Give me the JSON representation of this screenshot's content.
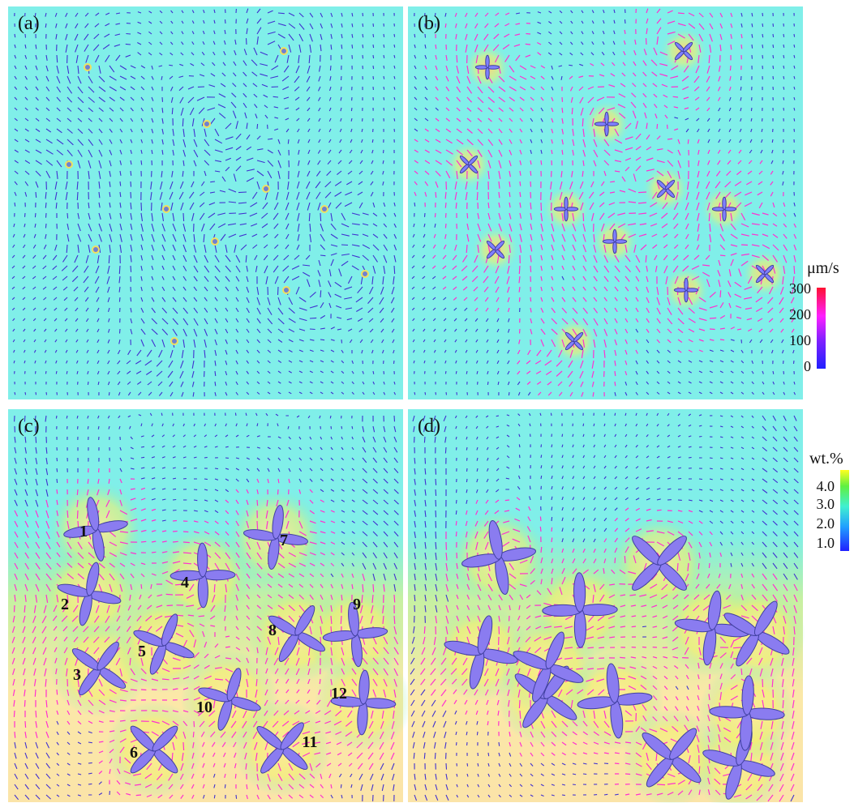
{
  "panels": [
    {
      "label": "(a)"
    },
    {
      "label": "(b)"
    },
    {
      "label": "(c)"
    },
    {
      "label": "(d)"
    }
  ],
  "colorbars": [
    {
      "title": "μm/s",
      "ticks": [
        "300",
        "200",
        "100",
        "0"
      ]
    },
    {
      "title": "wt.%",
      "ticks": [
        "4.0",
        "3.0",
        "2.0",
        "1.0"
      ]
    }
  ],
  "grain_labels": [
    "1",
    "2",
    "3",
    "4",
    "5",
    "6",
    "7",
    "8",
    "9",
    "10",
    "11",
    "12"
  ]
}
